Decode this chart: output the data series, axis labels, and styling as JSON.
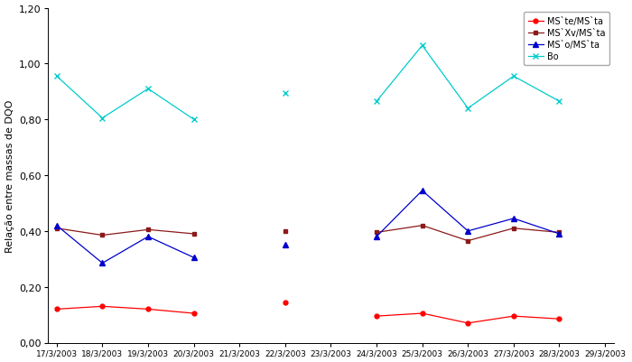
{
  "x_labels": [
    "17/3/2003",
    "18/3/2003",
    "19/3/2003",
    "20/3/2003",
    "21/3/2003",
    "22/3/2003",
    "23/3/2003",
    "24/3/2003",
    "25/3/2003",
    "26/3/2003",
    "27/3/2003",
    "28/3/2003",
    "29/3/2003"
  ],
  "series": [
    {
      "label": "MS`te/MS`ta",
      "color": "#ff0000",
      "marker": "o",
      "markersize": 3.5,
      "linewidth": 0.9,
      "values": [
        0.12,
        0.13,
        0.12,
        0.105,
        null,
        0.145,
        null,
        0.095,
        0.105,
        0.07,
        0.095,
        0.085,
        null
      ]
    },
    {
      "label": "MS`Xv/MS`ta",
      "color": "#8b1a1a",
      "marker": "s",
      "markersize": 3.5,
      "linewidth": 0.9,
      "values": [
        0.41,
        0.385,
        0.405,
        0.39,
        null,
        0.4,
        null,
        0.395,
        0.42,
        0.365,
        0.41,
        0.395,
        null
      ]
    },
    {
      "label": "MS`o/MS`ta",
      "color": "#0000cc",
      "marker": "^",
      "markersize": 4,
      "linewidth": 0.9,
      "values": [
        0.42,
        0.285,
        0.38,
        0.305,
        null,
        0.35,
        null,
        0.38,
        0.545,
        0.4,
        0.445,
        0.39,
        null
      ]
    },
    {
      "label": "Bo",
      "color": "#00cccc",
      "marker": "x",
      "markersize": 4,
      "linewidth": 0.9,
      "values": [
        0.955,
        0.805,
        0.91,
        0.8,
        null,
        0.895,
        null,
        0.865,
        1.065,
        0.84,
        0.955,
        0.865,
        null
      ]
    }
  ],
  "ylabel": "Relação entre massas de DQO",
  "ylim": [
    0.0,
    1.2
  ],
  "yticks": [
    0.0,
    0.2,
    0.4,
    0.6,
    0.8,
    1.0,
    1.2
  ],
  "ytick_labels": [
    "0,00",
    "0,20",
    "0,40",
    "0,60",
    "0,80",
    "1,00",
    "1,20"
  ],
  "background_color": "#ffffff",
  "legend_loc": "upper right",
  "legend_fontsize": 7.0,
  "figsize": [
    7.0,
    4.02
  ],
  "dpi": 100
}
